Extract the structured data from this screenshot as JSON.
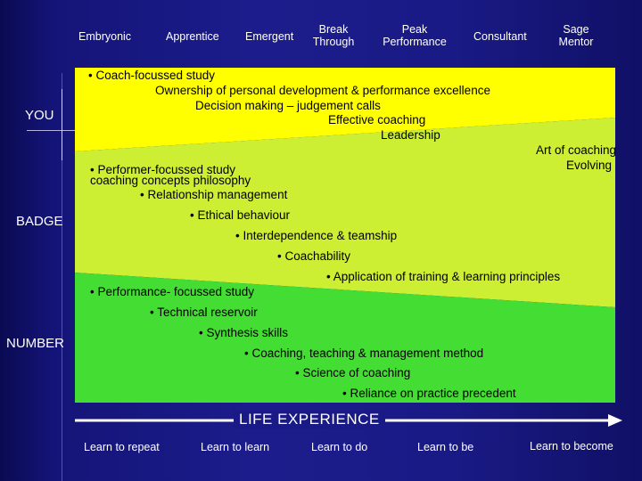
{
  "stages": [
    "Embryonic",
    "Apprentice",
    "Emergent",
    "Break Through",
    "Peak Performance",
    "Consultant",
    "Sage Mentor"
  ],
  "side_labels": {
    "you": "YOU",
    "badge": "BADGE",
    "number": "NUMBER"
  },
  "colors": {
    "you_zone": "#ffff00",
    "badge_zone": "#ccee33",
    "number_zone": "#44dd33",
    "background": "#1a1a86",
    "arrow": "#ffffff"
  },
  "you_items": [
    "• Coach-focussed study",
    "Ownership of personal development & performance excellence",
    "Decision making – judgement calls",
    "Effective coaching",
    "Leadership",
    "Art of coaching",
    "Evolving"
  ],
  "badge_items": [
    "• Performer-focussed study",
    "coaching concepts  philosophy",
    "• Relationship management",
    "• Ethical behaviour",
    "• Interdependence & teamship",
    "• Coachability",
    "• Application of training & learning principles"
  ],
  "number_items": [
    "• Performance- focussed study",
    "• Technical reservoir",
    "• Synthesis skills",
    "• Coaching, teaching & management method",
    "• Science of coaching",
    "• Reliance on practice precedent"
  ],
  "axis": {
    "title": "LIFE  EXPERIENCE",
    "steps": [
      "Learn to repeat",
      "Learn to learn",
      "Learn to do",
      "Learn to be",
      "Learn to become"
    ]
  }
}
